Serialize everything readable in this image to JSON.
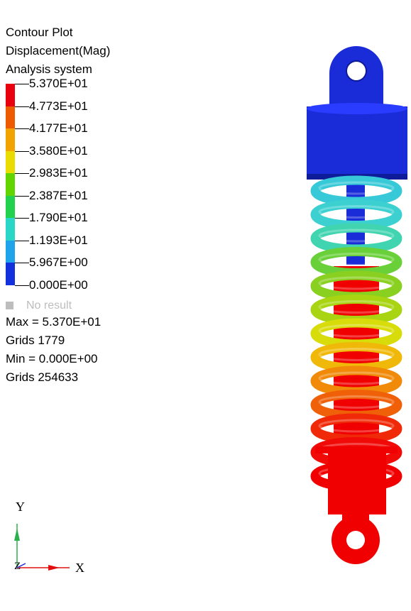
{
  "header": {
    "line1": "Contour Plot",
    "line2": "Displacement(Mag)",
    "line3": "Analysis system"
  },
  "legend": {
    "levels": [
      "5.370E+01",
      "4.773E+01",
      "4.177E+01",
      "3.580E+01",
      "2.983E+01",
      "2.387E+01",
      "1.790E+01",
      "1.193E+01",
      "5.967E+00",
      "0.000E+00"
    ],
    "colors": [
      "#e8000e",
      "#ee5a00",
      "#f2a300",
      "#e8dc00",
      "#62d400",
      "#22d24e",
      "#2ad6c6",
      "#1fa3ea",
      "#1230dc"
    ],
    "no_result": "No result",
    "no_result_color": "#bdbdbd"
  },
  "stats": {
    "max": "Max = 5.370E+01",
    "max_grid": "Grids 1779",
    "min": "Min = 0.000E+00",
    "min_grid": "Grids 254633"
  },
  "triad": {
    "y": "Y",
    "x": "X",
    "z": "Z"
  },
  "model": {
    "top_color": "#1a2bd8",
    "bottom_color": "#f00000",
    "coil_colors": [
      "#38c9d8",
      "#3cd0d0",
      "#40d4b0",
      "#6ad03a",
      "#8ad020",
      "#a8d412",
      "#d8dc0a",
      "#f0b808",
      "#f08a08",
      "#f06008",
      "#f02a08",
      "#f00a08",
      "#f00000"
    ]
  }
}
